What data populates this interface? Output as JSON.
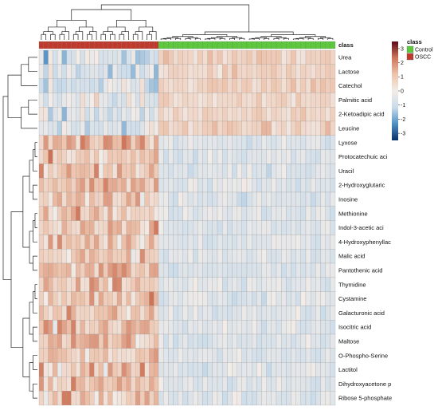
{
  "chart_data": {
    "type": "heatmap",
    "class_annotation_label": "class",
    "row_labels": [
      "Urea",
      "Lactose",
      "Catechol",
      "Palmitic acid",
      "2-Ketoadipic acid",
      "Leucine",
      "Lyxose",
      "Protocatechuic aci",
      "Uracil",
      "2-Hydroxyglutaric",
      "Inosine",
      "Methionine",
      "Indol-3-acetic aci",
      "4-Hydroxyphenyllac",
      "Malic acid",
      "Pantothenic acid",
      "Thymidine",
      "Cystamine",
      "Galacturonic acid",
      "Isocitric acid",
      "Maltose",
      "O-Phospho-Serine",
      "Lactitol",
      "Dihydroxyacetone p",
      "Ribose 5-phosphate"
    ],
    "classes": [
      {
        "name": "OSCC",
        "color": "#c0392b",
        "count": 26
      },
      {
        "name": "Control",
        "color": "#5cc83c",
        "count": 36
      }
    ],
    "legend": {
      "title": "class",
      "items": [
        {
          "label": "Control",
          "color": "#5cc83c"
        },
        {
          "label": "OSCC",
          "color": "#c0392b"
        }
      ]
    },
    "colorbar": {
      "ticks": [
        3,
        2,
        1,
        0,
        -1,
        -2,
        -3
      ],
      "range": [
        -3.5,
        3.5
      ],
      "colors": [
        "#08306b",
        "#4f8fc4",
        "#cbdcea",
        "#f2ece8",
        "#eec4ad",
        "#d0765a",
        "#5a0a18"
      ]
    },
    "group_means": {
      "OSCC": [
        -0.7,
        -0.8,
        -0.7,
        -0.6,
        -0.7,
        -0.6,
        1.2,
        1.0,
        1.0,
        1.2,
        1.0,
        1.0,
        1.0,
        1.0,
        1.0,
        1.0,
        1.0,
        1.1,
        1.0,
        1.1,
        1.1,
        1.1,
        1.0,
        1.2,
        1.0
      ],
      "Control": [
        0.8,
        0.7,
        0.8,
        0.7,
        0.7,
        0.7,
        -0.6,
        -0.6,
        -0.6,
        -0.6,
        -0.6,
        -0.6,
        -0.6,
        -0.6,
        -0.6,
        -0.6,
        -0.6,
        -0.6,
        -0.6,
        -0.6,
        -0.6,
        -0.6,
        -0.6,
        -0.6,
        -0.6
      ]
    }
  }
}
